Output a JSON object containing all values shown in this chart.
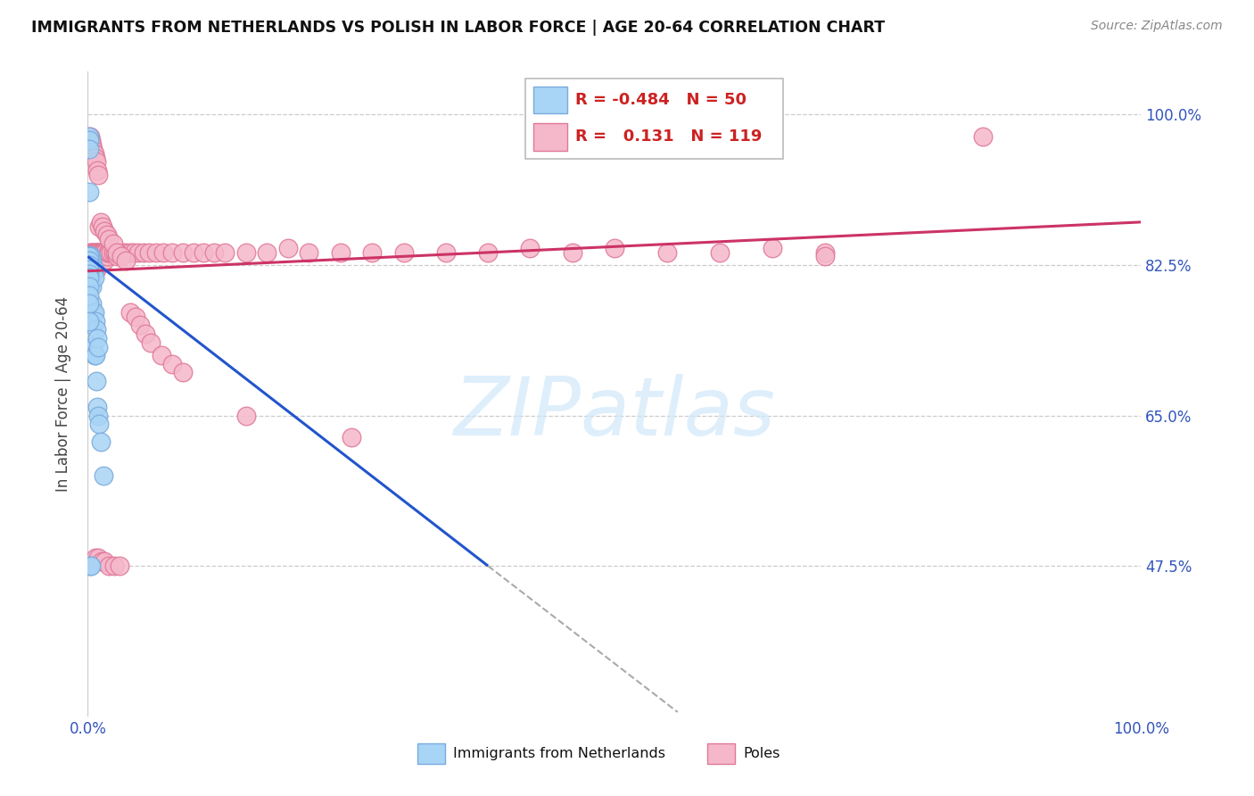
{
  "title": "IMMIGRANTS FROM NETHERLANDS VS POLISH IN LABOR FORCE | AGE 20-64 CORRELATION CHART",
  "source": "Source: ZipAtlas.com",
  "ylabel": "In Labor Force | Age 20-64",
  "ytick_vals": [
    0.475,
    0.65,
    0.825,
    1.0
  ],
  "ytick_labels": [
    "47.5%",
    "65.0%",
    "82.5%",
    "100.0%"
  ],
  "xmin": 0.0,
  "xmax": 1.0,
  "ymin": 0.3,
  "ymax": 1.05,
  "netherlands_color": "#a8d4f5",
  "netherlands_edge": "#7aabdd",
  "poles_color": "#f5b8cb",
  "poles_edge": "#e07898",
  "trend_nl_color": "#2255cc",
  "trend_po_color": "#cc3366",
  "watermark_color": "#d0e8fa",
  "nl_R": "-0.484",
  "nl_N": "50",
  "po_R": "0.131",
  "po_N": "119",
  "trend_nl_x0": 0.0,
  "trend_nl_y0": 0.835,
  "trend_nl_x1": 0.38,
  "trend_nl_y1": 0.475,
  "trend_nl_dash_x1": 0.56,
  "trend_nl_dash_y1": 0.305,
  "trend_po_x0": 0.0,
  "trend_po_y0": 0.818,
  "trend_po_x1": 1.0,
  "trend_po_y1": 0.875,
  "nl_x": [
    0.001,
    0.001,
    0.001,
    0.001,
    0.002,
    0.002,
    0.002,
    0.002,
    0.002,
    0.003,
    0.003,
    0.003,
    0.003,
    0.003,
    0.004,
    0.004,
    0.004,
    0.004,
    0.004,
    0.005,
    0.005,
    0.005,
    0.005,
    0.006,
    0.006,
    0.006,
    0.006,
    0.007,
    0.007,
    0.008,
    0.008,
    0.009,
    0.009,
    0.01,
    0.01,
    0.011,
    0.012,
    0.015,
    0.002,
    0.003,
    0.001,
    0.001,
    0.001,
    0.001,
    0.001,
    0.001,
    0.001,
    0.001,
    0.001,
    0.001
  ],
  "nl_y": [
    0.975,
    0.97,
    0.96,
    0.91,
    0.835,
    0.835,
    0.835,
    0.83,
    0.82,
    0.835,
    0.83,
    0.825,
    0.82,
    0.81,
    0.83,
    0.82,
    0.81,
    0.8,
    0.78,
    0.825,
    0.82,
    0.77,
    0.73,
    0.82,
    0.81,
    0.77,
    0.72,
    0.76,
    0.72,
    0.75,
    0.69,
    0.74,
    0.66,
    0.73,
    0.65,
    0.64,
    0.62,
    0.58,
    0.475,
    0.475,
    0.835,
    0.83,
    0.825,
    0.82,
    0.815,
    0.81,
    0.8,
    0.79,
    0.78,
    0.76
  ],
  "po_x": [
    0.001,
    0.001,
    0.002,
    0.002,
    0.002,
    0.003,
    0.003,
    0.003,
    0.003,
    0.004,
    0.004,
    0.004,
    0.004,
    0.005,
    0.005,
    0.005,
    0.005,
    0.006,
    0.006,
    0.006,
    0.007,
    0.007,
    0.007,
    0.008,
    0.008,
    0.008,
    0.009,
    0.009,
    0.01,
    0.01,
    0.011,
    0.011,
    0.012,
    0.012,
    0.013,
    0.013,
    0.014,
    0.014,
    0.015,
    0.016,
    0.017,
    0.018,
    0.019,
    0.02,
    0.022,
    0.024,
    0.026,
    0.028,
    0.03,
    0.033,
    0.036,
    0.04,
    0.044,
    0.048,
    0.053,
    0.058,
    0.065,
    0.072,
    0.08,
    0.09,
    0.1,
    0.11,
    0.12,
    0.13,
    0.15,
    0.17,
    0.19,
    0.21,
    0.24,
    0.27,
    0.3,
    0.34,
    0.38,
    0.42,
    0.46,
    0.5,
    0.55,
    0.6,
    0.65,
    0.7,
    0.001,
    0.002,
    0.003,
    0.004,
    0.005,
    0.006,
    0.007,
    0.008,
    0.009,
    0.01,
    0.011,
    0.012,
    0.014,
    0.016,
    0.018,
    0.02,
    0.024,
    0.028,
    0.032,
    0.036,
    0.04,
    0.045,
    0.05,
    0.055,
    0.06,
    0.07,
    0.08,
    0.09,
    0.15,
    0.25,
    0.007,
    0.01,
    0.013,
    0.016,
    0.02,
    0.025,
    0.03,
    0.7,
    0.85
  ],
  "po_y": [
    0.835,
    0.825,
    0.84,
    0.835,
    0.83,
    0.84,
    0.835,
    0.83,
    0.825,
    0.84,
    0.835,
    0.83,
    0.825,
    0.84,
    0.835,
    0.83,
    0.82,
    0.84,
    0.835,
    0.82,
    0.84,
    0.835,
    0.82,
    0.84,
    0.835,
    0.82,
    0.84,
    0.835,
    0.84,
    0.83,
    0.84,
    0.83,
    0.84,
    0.83,
    0.84,
    0.83,
    0.84,
    0.83,
    0.84,
    0.83,
    0.84,
    0.835,
    0.84,
    0.84,
    0.84,
    0.84,
    0.84,
    0.835,
    0.84,
    0.84,
    0.84,
    0.84,
    0.84,
    0.84,
    0.84,
    0.84,
    0.84,
    0.84,
    0.84,
    0.84,
    0.84,
    0.84,
    0.84,
    0.84,
    0.84,
    0.84,
    0.845,
    0.84,
    0.84,
    0.84,
    0.84,
    0.84,
    0.84,
    0.845,
    0.84,
    0.845,
    0.84,
    0.84,
    0.845,
    0.84,
    0.97,
    0.975,
    0.97,
    0.965,
    0.96,
    0.955,
    0.95,
    0.945,
    0.935,
    0.93,
    0.87,
    0.875,
    0.87,
    0.865,
    0.86,
    0.855,
    0.85,
    0.84,
    0.835,
    0.83,
    0.77,
    0.765,
    0.755,
    0.745,
    0.735,
    0.72,
    0.71,
    0.7,
    0.65,
    0.625,
    0.485,
    0.485,
    0.48,
    0.48,
    0.475,
    0.475,
    0.475,
    0.835,
    0.975
  ]
}
